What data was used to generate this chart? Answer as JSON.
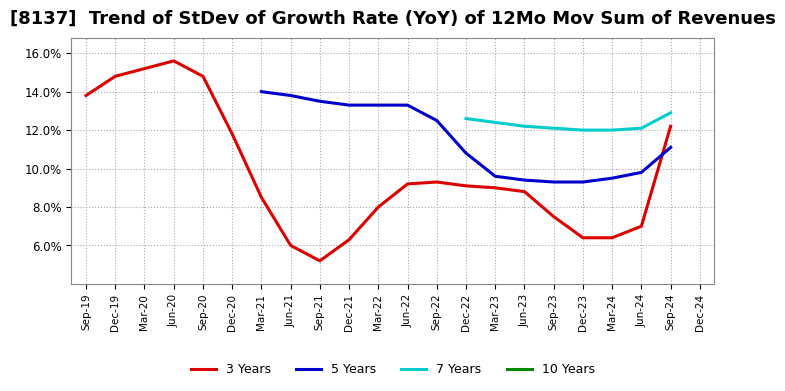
{
  "title": "[8137]  Trend of StDev of Growth Rate (YoY) of 12Mo Mov Sum of Revenues",
  "title_fontsize": 13,
  "background_color": "#ffffff",
  "plot_bg_color": "#ffffff",
  "grid_color": "#aaaaaa",
  "ylim": [
    0.04,
    0.168
  ],
  "yticks": [
    0.06,
    0.08,
    0.1,
    0.12,
    0.14,
    0.16
  ],
  "xtick_labels": [
    "Sep-19",
    "Dec-19",
    "Mar-20",
    "Jun-20",
    "Sep-20",
    "Dec-20",
    "Mar-21",
    "Jun-21",
    "Sep-21",
    "Dec-21",
    "Mar-22",
    "Jun-22",
    "Sep-22",
    "Dec-22",
    "Mar-23",
    "Jun-23",
    "Sep-23",
    "Dec-23",
    "Mar-24",
    "Jun-24",
    "Sep-24",
    "Dec-24"
  ],
  "series": {
    "3 Years": {
      "color": "#dd0000",
      "x": [
        "Sep-19",
        "Dec-19",
        "Mar-20",
        "Jun-20",
        "Sep-20",
        "Dec-20",
        "Mar-21",
        "Jun-21",
        "Sep-21",
        "Dec-21",
        "Mar-22",
        "Jun-22",
        "Sep-22",
        "Dec-22",
        "Mar-23",
        "Jun-23",
        "Sep-23",
        "Dec-23",
        "Mar-24",
        "Jun-24",
        "Sep-24"
      ],
      "y": [
        0.138,
        0.148,
        0.152,
        0.156,
        0.148,
        0.118,
        0.085,
        0.06,
        0.052,
        0.063,
        0.08,
        0.092,
        0.093,
        0.091,
        0.09,
        0.088,
        0.075,
        0.064,
        0.064,
        0.07,
        0.122
      ]
    },
    "5 Years": {
      "color": "#0000cc",
      "x": [
        "Mar-21",
        "Jun-21",
        "Sep-21",
        "Dec-21",
        "Mar-22",
        "Jun-22",
        "Sep-22",
        "Dec-22",
        "Mar-23",
        "Jun-23",
        "Sep-23",
        "Dec-23",
        "Mar-24",
        "Jun-24",
        "Sep-24"
      ],
      "y": [
        0.14,
        0.138,
        0.135,
        0.133,
        0.133,
        0.133,
        0.125,
        0.108,
        0.096,
        0.094,
        0.093,
        0.093,
        0.095,
        0.098,
        0.111
      ]
    },
    "7 Years": {
      "color": "#00cccc",
      "x": [
        "Dec-22",
        "Mar-23",
        "Jun-23",
        "Sep-23",
        "Dec-23",
        "Mar-24",
        "Jun-24",
        "Sep-24"
      ],
      "y": [
        0.126,
        0.124,
        0.122,
        0.121,
        0.12,
        0.12,
        0.121,
        0.129
      ]
    },
    "10 Years": {
      "color": "#008800",
      "x": [],
      "y": []
    }
  },
  "legend_labels": [
    "3 Years",
    "5 Years",
    "7 Years",
    "10 Years"
  ],
  "legend_colors": [
    "#dd0000",
    "#0000cc",
    "#00cccc",
    "#008800"
  ],
  "linewidth": 2.2
}
